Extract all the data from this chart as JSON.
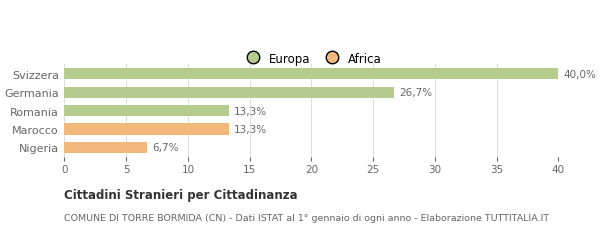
{
  "categories": [
    "Nigeria",
    "Marocco",
    "Romania",
    "Germania",
    "Svizzera"
  ],
  "values": [
    6.7,
    13.3,
    13.3,
    26.7,
    40.0
  ],
  "colors": [
    "#f0b87a",
    "#f0b87a",
    "#b5cc8e",
    "#b5cc8e",
    "#b5cc8e"
  ],
  "labels": [
    "6,7%",
    "13,3%",
    "13,3%",
    "26,7%",
    "40,0%"
  ],
  "legend": [
    {
      "label": "Europa",
      "color": "#b5cc8e"
    },
    {
      "label": "Africa",
      "color": "#f0b87a"
    }
  ],
  "xlim": [
    0,
    40
  ],
  "xticks": [
    0,
    5,
    10,
    15,
    20,
    25,
    30,
    35,
    40
  ],
  "title": "Cittadini Stranieri per Cittadinanza",
  "subtitle": "COMUNE DI TORRE BORMIDA (CN) - Dati ISTAT al 1° gennaio di ogni anno - Elaborazione TUTTITALIA.IT",
  "background_color": "#ffffff",
  "bar_height": 0.6,
  "grid_color": "#dddddd",
  "text_color": "#666666",
  "label_fontsize": 7.5,
  "tick_fontsize": 7.5,
  "category_fontsize": 8.0
}
